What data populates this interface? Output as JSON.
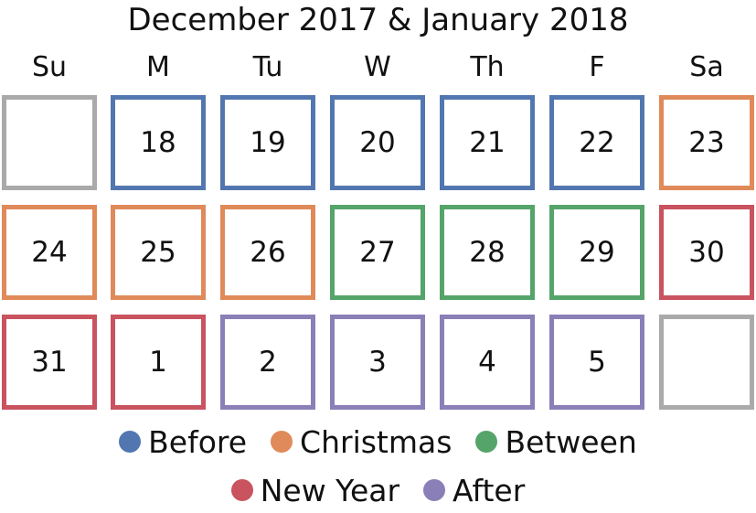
{
  "title": "December 2017 & January 2018",
  "weekdays": [
    "Su",
    "M",
    "Tu",
    "W",
    "Th",
    "F",
    "Sa"
  ],
  "colors": {
    "before": "#5277b0",
    "christmas": "#e08a5a",
    "between": "#55a46a",
    "newyear": "#c9535f",
    "after": "#8b7fb8",
    "empty": "#aaaaaa"
  },
  "weeks": [
    [
      {
        "day": "",
        "period": "empty"
      },
      {
        "day": "18",
        "period": "before"
      },
      {
        "day": "19",
        "period": "before"
      },
      {
        "day": "20",
        "period": "before"
      },
      {
        "day": "21",
        "period": "before"
      },
      {
        "day": "22",
        "period": "before"
      },
      {
        "day": "23",
        "period": "christmas"
      }
    ],
    [
      {
        "day": "24",
        "period": "christmas"
      },
      {
        "day": "25",
        "period": "christmas"
      },
      {
        "day": "26",
        "period": "christmas"
      },
      {
        "day": "27",
        "period": "between"
      },
      {
        "day": "28",
        "period": "between"
      },
      {
        "day": "29",
        "period": "between"
      },
      {
        "day": "30",
        "period": "newyear"
      }
    ],
    [
      {
        "day": "31",
        "period": "newyear"
      },
      {
        "day": "1",
        "period": "newyear"
      },
      {
        "day": "2",
        "period": "after"
      },
      {
        "day": "3",
        "period": "after"
      },
      {
        "day": "4",
        "period": "after"
      },
      {
        "day": "5",
        "period": "after"
      },
      {
        "day": "",
        "period": "empty"
      }
    ]
  ],
  "legend": {
    "rows": [
      [
        {
          "key": "before",
          "label": "Before"
        },
        {
          "key": "christmas",
          "label": "Christmas"
        },
        {
          "key": "between",
          "label": "Between"
        }
      ],
      [
        {
          "key": "newyear",
          "label": "New Year"
        },
        {
          "key": "after",
          "label": "After"
        }
      ]
    ]
  }
}
